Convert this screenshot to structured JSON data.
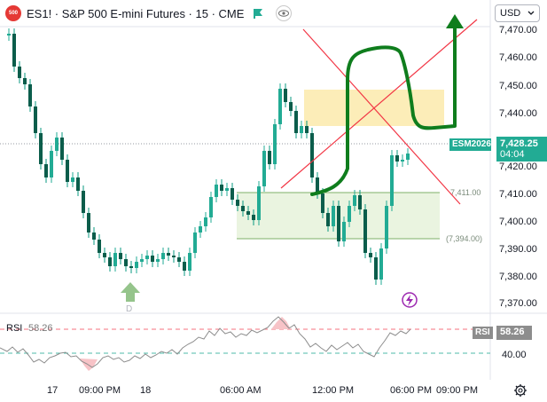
{
  "header": {
    "symbol_badge": "500",
    "title": "ES1! · S&P 500 E-mini Futures · 15 · CME",
    "currency": "USD",
    "flag_color": "#22ab94"
  },
  "price_axis": {
    "labels": [
      "7,470.00",
      "7,460.00",
      "7,450.00",
      "7,440.00",
      "7,420.00",
      "7,410.00",
      "7,400.00",
      "7,390.00",
      "7,380.00",
      "7,370.00"
    ]
  },
  "current": {
    "ticker_label": "ESM2026",
    "price": "7,428.25",
    "countdown": "04:04",
    "color": "#22ab94"
  },
  "levels": {
    "upper": "7,411.00",
    "lower": "(7,394.00)"
  },
  "marker_label": "D",
  "rsi": {
    "label": "RSI",
    "value": "58.26",
    "axis_label": "40.00",
    "tag_label": "RSI",
    "tag_value": "58.26"
  },
  "time_axis": {
    "labels": [
      "17",
      "09:00 PM",
      "18",
      "06:00 AM",
      "12:00 PM",
      "06:00 PM",
      "09:00 PM"
    ]
  },
  "colors": {
    "up": "#22ab94",
    "down": "#089981",
    "drawing_green": "#0f7d1d",
    "cross_red": "#f23645",
    "zone_yellow": "#fbe8a6",
    "zone_green": "#e8f3dd"
  }
}
